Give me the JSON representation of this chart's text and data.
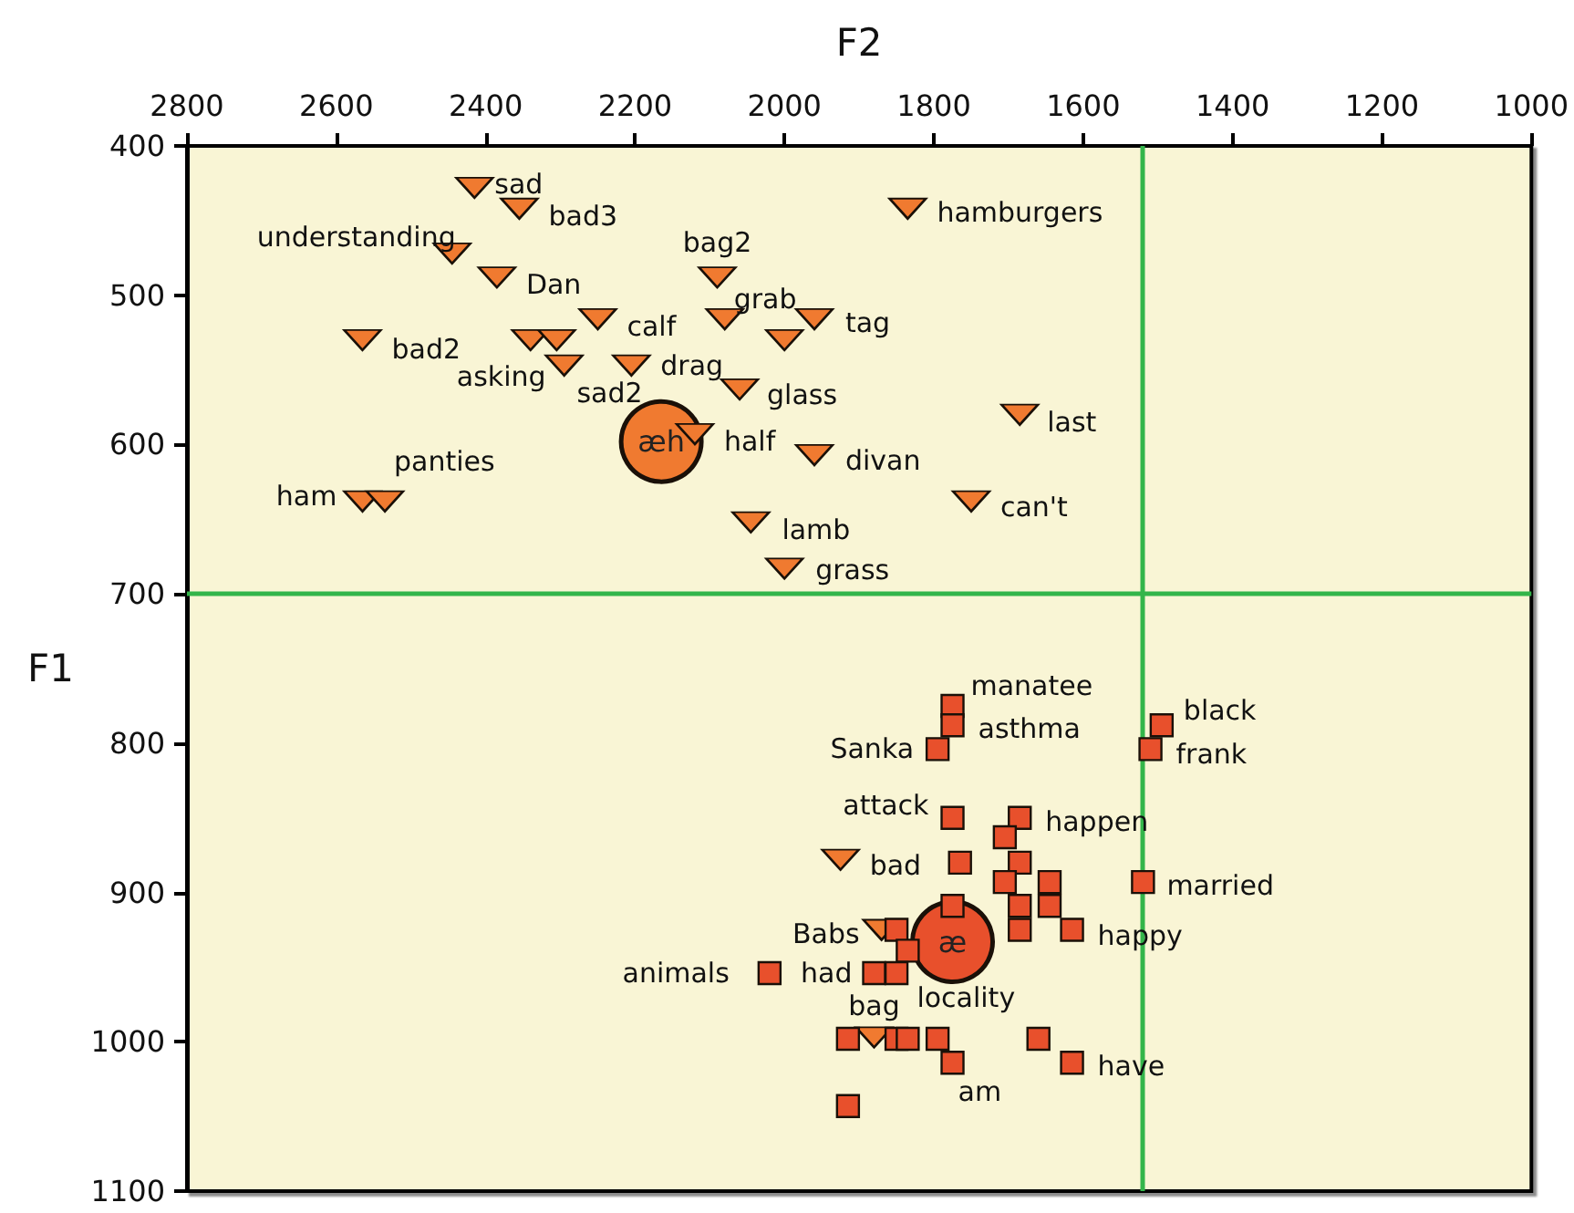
{
  "chart_data": {
    "type": "scatter",
    "xlabel": "F2",
    "ylabel": "F1",
    "xlim": [
      2800,
      1000
    ],
    "ylim": [
      1100,
      400
    ],
    "xticks": [
      2800,
      2600,
      2400,
      2200,
      2000,
      1800,
      1600,
      1400,
      1200,
      1000
    ],
    "yticks": [
      400,
      500,
      600,
      700,
      800,
      900,
      1000,
      1100
    ],
    "grid": false,
    "legend": false,
    "ref_lines": [
      {
        "axis": "x",
        "value": 1520,
        "color": "#33b54a"
      },
      {
        "axis": "y",
        "value": 700,
        "color": "#33b54a"
      }
    ],
    "series": [
      {
        "name": "æh",
        "marker": "circle",
        "color": "#f07a30",
        "x": [
          2165
        ],
        "values": [
          598
        ]
      },
      {
        "name": "æ",
        "marker": "circle",
        "color": "#e8502c",
        "x": [
          1775
        ],
        "values": [
          933
        ]
      },
      {
        "marker": "triangle",
        "color": "#f07a30",
        "x": [
          2415,
          2355,
          2445,
          2385,
          2090,
          2080,
          2250,
          2000,
          1960,
          2565,
          2340,
          2305,
          2295,
          2205,
          2060,
          2120,
          1960,
          2565,
          2535,
          2045,
          2000,
          1835,
          1685,
          1750,
          1925,
          1870,
          1880
        ],
        "values": [
          428,
          442,
          472,
          488,
          488,
          516,
          516,
          530,
          516,
          530,
          530,
          530,
          547,
          547,
          563,
          593,
          607,
          638,
          638,
          652,
          683,
          442,
          580,
          638,
          878,
          925,
          997
        ]
      },
      {
        "marker": "square",
        "color": "#e8502c",
        "x": [
          1775,
          1775,
          1795,
          1495,
          1510,
          1775,
          1685,
          1705,
          1765,
          1685,
          1705,
          1645,
          1520,
          1775,
          1685,
          1645,
          1685,
          1615,
          1850,
          1835,
          2020,
          1880,
          1850,
          1915,
          1850,
          1835,
          1795,
          1660,
          1775,
          1615,
          1915
        ],
        "values": [
          775,
          788,
          804,
          788,
          804,
          850,
          850,
          863,
          880,
          880,
          893,
          893,
          893,
          909,
          909,
          909,
          925,
          925,
          925,
          939,
          954,
          954,
          954,
          998,
          998,
          998,
          998,
          998,
          1014,
          1014,
          1043
        ]
      }
    ],
    "annotations": [
      {
        "text": "sad",
        "x": 2415,
        "y": 428
      },
      {
        "text": "bad3",
        "x": 2355,
        "y": 442
      },
      {
        "text": "understanding",
        "x": 2445,
        "y": 472
      },
      {
        "text": "Dan",
        "x": 2385,
        "y": 488
      },
      {
        "text": "bag2",
        "x": 2090,
        "y": 488
      },
      {
        "text": "grab",
        "x": 2080,
        "y": 516
      },
      {
        "text": "calf",
        "x": 2250,
        "y": 516
      },
      {
        "text": "tag",
        "x": 1960,
        "y": 516
      },
      {
        "text": "bad2",
        "x": 2565,
        "y": 530
      },
      {
        "text": "sad2",
        "x": 2305,
        "y": 530
      },
      {
        "text": "asking",
        "x": 2295,
        "y": 547
      },
      {
        "text": "drag",
        "x": 2205,
        "y": 547
      },
      {
        "text": "glass",
        "x": 2060,
        "y": 563
      },
      {
        "text": "half",
        "x": 2120,
        "y": 593
      },
      {
        "text": "divan",
        "x": 1960,
        "y": 607
      },
      {
        "text": "ham",
        "x": 2565,
        "y": 638
      },
      {
        "text": "panties",
        "x": 2535,
        "y": 638
      },
      {
        "text": "lamb",
        "x": 2045,
        "y": 652
      },
      {
        "text": "grass",
        "x": 2000,
        "y": 683
      },
      {
        "text": "hamburgers",
        "x": 1835,
        "y": 442
      },
      {
        "text": "last",
        "x": 1685,
        "y": 580
      },
      {
        "text": "can't",
        "x": 1750,
        "y": 638
      },
      {
        "text": "manatee",
        "x": 1775,
        "y": 775
      },
      {
        "text": "asthma",
        "x": 1775,
        "y": 788
      },
      {
        "text": "Sanka",
        "x": 1795,
        "y": 804
      },
      {
        "text": "black",
        "x": 1495,
        "y": 788
      },
      {
        "text": "frank",
        "x": 1510,
        "y": 804
      },
      {
        "text": "attack",
        "x": 1775,
        "y": 850
      },
      {
        "text": "happen",
        "x": 1685,
        "y": 850
      },
      {
        "text": "bad",
        "x": 1925,
        "y": 878
      },
      {
        "text": "married",
        "x": 1520,
        "y": 893
      },
      {
        "text": "happy",
        "x": 1615,
        "y": 925
      },
      {
        "text": "Babs",
        "x": 1870,
        "y": 925
      },
      {
        "text": "animals",
        "x": 2020,
        "y": 954
      },
      {
        "text": "had",
        "x": 1880,
        "y": 954
      },
      {
        "text": "locality",
        "x": 1835,
        "y": 939
      },
      {
        "text": "bag",
        "x": 1880,
        "y": 997
      },
      {
        "text": "am",
        "x": 1775,
        "y": 1014
      },
      {
        "text": "have",
        "x": 1615,
        "y": 1014
      }
    ]
  }
}
